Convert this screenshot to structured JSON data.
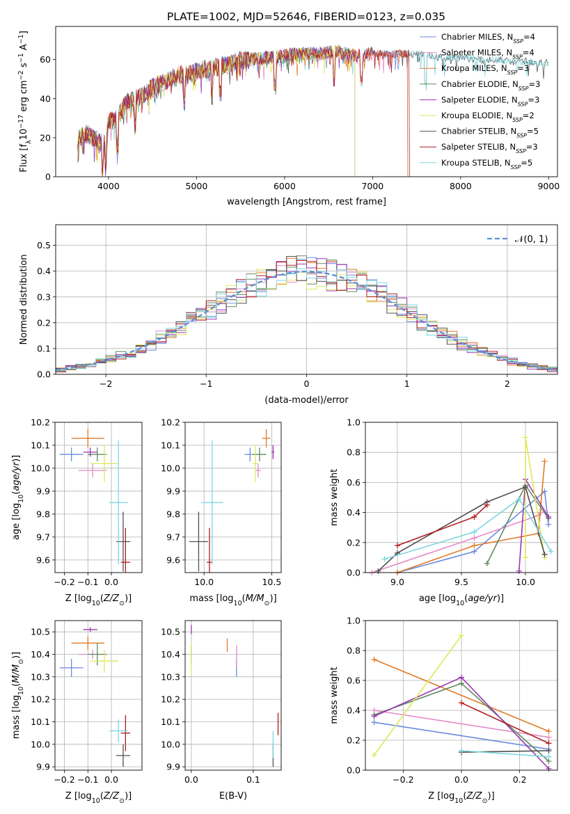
{
  "figure_title": "PLATE=1002, MJD=52646, FIBERID=0123, z=0.035",
  "colors": {
    "Chabrier MILES": "#6a8ae0",
    "Salpeter MILES": "#e48ac8",
    "Kroupa MILES": "#e07a28",
    "Chabrier ELODIE": "#5e8c5e",
    "Salpeter ELODIE": "#9a35b0",
    "Kroupa ELODIE": "#dfe85a",
    "Chabrier STELIB": "#505050",
    "Salpeter STELIB": "#b01c1c",
    "Kroupa STELIB": "#7dd6e0"
  },
  "chart_data": [
    {
      "id": "spectrum",
      "type": "line",
      "xlabel": "wavelength [Angstrom, rest frame]",
      "ylabel": "Flux [f_λ 10^-17 erg cm^-2 s^-1 A^-1]",
      "xlim": [
        3400,
        9100
      ],
      "ylim": [
        0,
        77
      ],
      "xticks": [
        4000,
        5000,
        6000,
        7000,
        8000,
        9000
      ],
      "yticks": [
        0,
        20,
        40,
        60
      ],
      "grid": false,
      "legend_position": "right",
      "spectrum_trend": {
        "x": [
          3650,
          3750,
          3850,
          3950,
          4000,
          4100,
          4200,
          4300,
          4400,
          4500,
          4600,
          4700,
          4800,
          4900,
          5000,
          5100,
          5200,
          5300,
          5400,
          5500,
          5600,
          5800,
          6000,
          6200,
          6400,
          6600,
          6800,
          7000,
          7200,
          7400,
          7600,
          7800,
          8000,
          8200,
          8400,
          8600,
          8800,
          9000
        ],
        "y": [
          20,
          22,
          19,
          17,
          28,
          30,
          38,
          40,
          42,
          46,
          48,
          50,
          52,
          52,
          54,
          55,
          56,
          57,
          58,
          60,
          60,
          61,
          62,
          63,
          63,
          64,
          62,
          63,
          63,
          63,
          62,
          61,
          61,
          60,
          60,
          59,
          59,
          58
        ]
      },
      "absorption_lines": [
        3933,
        3968,
        4102,
        4304,
        4861,
        5175,
        5270,
        5890,
        6563,
        6870,
        7600
      ],
      "series": [
        {
          "name": "Chabrier MILES, N_SSP=4",
          "x_end": 7400
        },
        {
          "name": "Salpeter MILES, N_SSP=4",
          "x_end": 7400
        },
        {
          "name": "Kroupa MILES, N_SSP=3",
          "x_end": 7400
        },
        {
          "name": "Chabrier ELODIE, N_SSP=3",
          "x_end": 6800
        },
        {
          "name": "Salpeter ELODIE, N_SSP=3",
          "x_end": 6800
        },
        {
          "name": "Kroupa ELODIE, N_SSP=2",
          "x_end": 6800
        },
        {
          "name": "Chabrier STELIB, N_SSP=5",
          "x_end": 9000
        },
        {
          "name": "Salpeter STELIB, N_SSP=3",
          "x_end": 7420
        },
        {
          "name": "Kroupa STELIB, N_SSP=5",
          "x_end": 9000
        }
      ]
    },
    {
      "id": "residuals",
      "type": "line",
      "xlabel": "(data-model)/error",
      "ylabel": "Normed distribution",
      "xlim": [
        -2.5,
        2.5
      ],
      "ylim": [
        0,
        0.58
      ],
      "xticks": [
        -2,
        -1,
        0,
        1,
        2
      ],
      "yticks": [
        0.0,
        0.1,
        0.2,
        0.3,
        0.4,
        0.5
      ],
      "grid": true,
      "legend_position": "top-right",
      "gaussian_label": "𝒩(0, 1)",
      "bin_width": 0.1
    },
    {
      "id": "age_vs_Z",
      "type": "scatter",
      "xlabel": "Z [log10(Z/Z_sun)]",
      "ylabel": "age [log10(age/yr)]",
      "xlim": [
        -0.24,
        0.13
      ],
      "ylim": [
        9.545,
        10.2
      ],
      "xticks": [
        -0.2,
        -0.1,
        0.0
      ],
      "yticks": [
        9.6,
        9.7,
        9.8,
        9.9,
        10.0,
        10.1,
        10.2
      ],
      "grid": true,
      "points": [
        {
          "model": "Chabrier MILES",
          "x": -0.17,
          "y": 10.06,
          "xerr": 0.05,
          "yerr": 0.03
        },
        {
          "model": "Salpeter MILES",
          "x": -0.08,
          "y": 9.99,
          "xerr": 0.06,
          "yerr": 0.03
        },
        {
          "model": "Kroupa MILES",
          "x": -0.1,
          "y": 10.13,
          "xerr": 0.07,
          "yerr": 0.04
        },
        {
          "model": "Chabrier ELODIE",
          "x": -0.06,
          "y": 10.06,
          "xerr": 0.04,
          "yerr": 0.03
        },
        {
          "model": "Salpeter ELODIE",
          "x": -0.09,
          "y": 10.07,
          "xerr": 0.03,
          "yerr": 0.02
        },
        {
          "model": "Kroupa ELODIE",
          "x": -0.03,
          "y": 10.02,
          "xerr": 0.06,
          "yerr": 0.08
        },
        {
          "model": "Chabrier STELIB",
          "x": 0.05,
          "y": 9.68,
          "xerr": 0.03,
          "yerr": 0.13
        },
        {
          "model": "Salpeter STELIB",
          "x": 0.06,
          "y": 9.59,
          "xerr": 0.02,
          "yerr": 0.15
        },
        {
          "model": "Kroupa STELIB",
          "x": 0.03,
          "y": 9.85,
          "xerr": 0.04,
          "yerr": 0.27
        }
      ]
    },
    {
      "id": "age_vs_mass",
      "type": "scatter",
      "xlabel": "mass [log10(M/M_sun)]",
      "ylabel": "",
      "xlim": [
        9.86,
        10.57
      ],
      "ylim": [
        9.545,
        10.2
      ],
      "xticks": [
        10.0,
        10.5
      ],
      "yticks": [
        9.6,
        9.7,
        9.8,
        9.9,
        10.0,
        10.1,
        10.2
      ],
      "grid": true,
      "points": [
        {
          "model": "Chabrier MILES",
          "x": 10.34,
          "y": 10.06,
          "xerr": 0.04,
          "yerr": 0.03
        },
        {
          "model": "Salpeter MILES",
          "x": 10.4,
          "y": 9.99,
          "xerr": 0.02,
          "yerr": 0.03
        },
        {
          "model": "Kroupa MILES",
          "x": 10.46,
          "y": 10.13,
          "xerr": 0.03,
          "yerr": 0.04
        },
        {
          "model": "Chabrier ELODIE",
          "x": 10.41,
          "y": 10.06,
          "xerr": 0.05,
          "yerr": 0.03
        },
        {
          "model": "Salpeter ELODIE",
          "x": 10.51,
          "y": 10.07,
          "xerr": 0.01,
          "yerr": 0.03
        },
        {
          "model": "Kroupa ELODIE",
          "x": 10.38,
          "y": 10.02,
          "xerr": 0.02,
          "yerr": 0.08
        },
        {
          "model": "Chabrier STELIB",
          "x": 9.96,
          "y": 9.68,
          "xerr": 0.07,
          "yerr": 0.13
        },
        {
          "model": "Salpeter STELIB",
          "x": 10.04,
          "y": 9.59,
          "xerr": 0.02,
          "yerr": 0.15
        },
        {
          "model": "Kroupa STELIB",
          "x": 10.06,
          "y": 9.85,
          "xerr": 0.08,
          "yerr": 0.27
        }
      ]
    },
    {
      "id": "weight_vs_age",
      "type": "line",
      "xlabel": "age [log10(age/yr)]",
      "ylabel": "mass weight",
      "xlim": [
        8.75,
        10.25
      ],
      "ylim": [
        0,
        1.0
      ],
      "xticks": [
        9.0,
        9.5,
        10.0
      ],
      "yticks": [
        0.0,
        0.2,
        0.4,
        0.6,
        0.8,
        1.0
      ],
      "grid": true,
      "series": [
        {
          "model": "Chabrier MILES",
          "x": [
            9.0,
            9.6,
            10.15,
            10.18
          ],
          "y": [
            0.0,
            0.14,
            0.54,
            0.32
          ]
        },
        {
          "model": "Salpeter MILES",
          "x": [
            8.8,
            9.6,
            10.1,
            10.12
          ],
          "y": [
            0.0,
            0.23,
            0.38,
            0.4
          ]
        },
        {
          "model": "Kroupa MILES",
          "x": [
            9.0,
            9.6,
            10.1,
            10.15
          ],
          "y": [
            0.0,
            0.18,
            0.26,
            0.74
          ]
        },
        {
          "model": "Chabrier ELODIE",
          "x": [
            9.7,
            10.0,
            10.18
          ],
          "y": [
            0.06,
            0.58,
            0.36
          ]
        },
        {
          "model": "Salpeter ELODIE",
          "x": [
            9.95,
            10.0,
            10.18
          ],
          "y": [
            0.01,
            0.62,
            0.37
          ]
        },
        {
          "model": "Kroupa ELODIE",
          "x": [
            10.0,
            10.0,
            10.15
          ],
          "y": [
            0.1,
            0.9,
            0.1
          ]
        },
        {
          "model": "Chabrier STELIB",
          "x": [
            8.85,
            9.0,
            9.7,
            10.0,
            10.15
          ],
          "y": [
            0.01,
            0.13,
            0.47,
            0.57,
            0.12
          ]
        },
        {
          "model": "Salpeter STELIB",
          "x": [
            9.0,
            9.6,
            9.7
          ],
          "y": [
            0.18,
            0.37,
            0.45
          ]
        },
        {
          "model": "Kroupa STELIB",
          "x": [
            8.9,
            9.6,
            9.95,
            10.2
          ],
          "y": [
            0.09,
            0.27,
            0.49,
            0.14
          ]
        }
      ]
    },
    {
      "id": "mass_vs_Z",
      "type": "scatter",
      "xlabel": "Z [log10(Z/Z_sun)]",
      "ylabel": "mass [log10(M/M_sun)]",
      "xlim": [
        -0.24,
        0.13
      ],
      "ylim": [
        9.885,
        10.55
      ],
      "xticks": [
        -0.2,
        -0.1,
        0.0
      ],
      "yticks": [
        9.9,
        10.0,
        10.1,
        10.2,
        10.3,
        10.4,
        10.5
      ],
      "grid": true,
      "points": [
        {
          "model": "Chabrier MILES",
          "x": -0.17,
          "y": 10.34,
          "xerr": 0.05,
          "yerr": 0.04
        },
        {
          "model": "Salpeter MILES",
          "x": -0.08,
          "y": 10.4,
          "xerr": 0.06,
          "yerr": 0.02
        },
        {
          "model": "Kroupa MILES",
          "x": -0.1,
          "y": 10.45,
          "xerr": 0.07,
          "yerr": 0.03
        },
        {
          "model": "Chabrier ELODIE",
          "x": -0.06,
          "y": 10.4,
          "xerr": 0.04,
          "yerr": 0.05
        },
        {
          "model": "Salpeter ELODIE",
          "x": -0.09,
          "y": 10.51,
          "xerr": 0.03,
          "yerr": 0.01
        },
        {
          "model": "Kroupa ELODIE",
          "x": -0.03,
          "y": 10.37,
          "xerr": 0.06,
          "yerr": 0.05
        },
        {
          "model": "Chabrier STELIB",
          "x": 0.05,
          "y": 9.95,
          "xerr": 0.03,
          "yerr": 0.05
        },
        {
          "model": "Salpeter STELIB",
          "x": 0.06,
          "y": 10.05,
          "xerr": 0.02,
          "yerr": 0.08
        },
        {
          "model": "Kroupa STELIB",
          "x": 0.03,
          "y": 10.06,
          "xerr": 0.04,
          "yerr": 0.05
        }
      ]
    },
    {
      "id": "mass_vs_ebv",
      "type": "scatter",
      "xlabel": "E(B-V)",
      "ylabel": "",
      "xlim": [
        -0.01,
        0.145
      ],
      "ylim": [
        9.885,
        10.55
      ],
      "xticks": [
        0.0,
        0.1
      ],
      "yticks": [
        9.9,
        10.0,
        10.1,
        10.2,
        10.3,
        10.4,
        10.5
      ],
      "grid": true,
      "points": [
        {
          "model": "Chabrier MILES",
          "x": 0.073,
          "y": 10.34,
          "xerr": 0.0,
          "yerr": 0.04
        },
        {
          "model": "Salpeter MILES",
          "x": 0.073,
          "y": 10.39,
          "xerr": 0.0,
          "yerr": 0.05
        },
        {
          "model": "Kroupa MILES",
          "x": 0.058,
          "y": 10.44,
          "xerr": 0.0,
          "yerr": 0.03
        },
        {
          "model": "Chabrier ELODIE",
          "x": 0.0,
          "y": 10.4,
          "xerr": 0.0,
          "yerr": 0.04
        },
        {
          "model": "Salpeter ELODIE",
          "x": 0.0,
          "y": 10.51,
          "xerr": 0.0,
          "yerr": 0.02
        },
        {
          "model": "Kroupa ELODIE",
          "x": 0.0,
          "y": 10.38,
          "xerr": 0.0,
          "yerr": 0.07
        },
        {
          "model": "Chabrier STELIB",
          "x": 0.132,
          "y": 9.95,
          "xerr": 0.0,
          "yerr": 0.05
        },
        {
          "model": "Salpeter STELIB",
          "x": 0.14,
          "y": 10.09,
          "xerr": 0.0,
          "yerr": 0.05
        },
        {
          "model": "Kroupa STELIB",
          "x": 0.132,
          "y": 10.0,
          "xerr": 0.0,
          "yerr": 0.06
        }
      ]
    },
    {
      "id": "weight_vs_Z",
      "type": "line",
      "xlabel": "Z [log10(Z/Z_sun)]",
      "ylabel": "mass weight",
      "xlim": [
        -0.33,
        0.33
      ],
      "ylim": [
        0,
        1.0
      ],
      "xticks": [
        -0.2,
        0.0,
        0.2
      ],
      "yticks": [
        0.0,
        0.2,
        0.4,
        0.6,
        0.8,
        1.0
      ],
      "grid": true,
      "series": [
        {
          "model": "Chabrier MILES",
          "x": [
            -0.3,
            0.3
          ],
          "y": [
            0.32,
            0.14
          ]
        },
        {
          "model": "Salpeter MILES",
          "x": [
            -0.3,
            0.3
          ],
          "y": [
            0.4,
            0.22
          ]
        },
        {
          "model": "Kroupa MILES",
          "x": [
            -0.3,
            0.3
          ],
          "y": [
            0.74,
            0.26
          ]
        },
        {
          "model": "Chabrier ELODIE",
          "x": [
            -0.3,
            0.0,
            0.3
          ],
          "y": [
            0.37,
            0.58,
            0.06
          ]
        },
        {
          "model": "Salpeter ELODIE",
          "x": [
            -0.3,
            0.0,
            0.3
          ],
          "y": [
            0.36,
            0.62,
            0.01
          ]
        },
        {
          "model": "Kroupa ELODIE",
          "x": [
            -0.3,
            0.0
          ],
          "y": [
            0.1,
            0.9
          ]
        },
        {
          "model": "Chabrier STELIB",
          "x": [
            0.0,
            0.3
          ],
          "y": [
            0.12,
            0.13
          ]
        },
        {
          "model": "Salpeter STELIB",
          "x": [
            0.0,
            0.3
          ],
          "y": [
            0.45,
            0.18
          ]
        },
        {
          "model": "Kroupa STELIB",
          "x": [
            0.0,
            0.3
          ],
          "y": [
            0.13,
            0.09
          ]
        }
      ]
    }
  ]
}
